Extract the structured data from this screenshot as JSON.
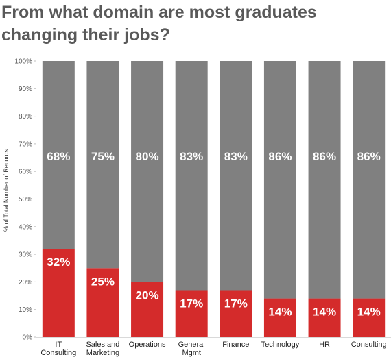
{
  "title": "From what domain are most graduates changing their jobs?",
  "chart_data": {
    "type": "bar",
    "stacked": true,
    "title": "From what domain are most graduates changing their jobs?",
    "xlabel": "",
    "ylabel": "% of Total Number of Records",
    "ylim": [
      0,
      100
    ],
    "yticks": [
      "0%",
      "10%",
      "20%",
      "30%",
      "40%",
      "50%",
      "60%",
      "70%",
      "80%",
      "90%",
      "100%"
    ],
    "grid": false,
    "categories": [
      [
        "IT",
        "Consulting"
      ],
      [
        "Sales and",
        "Marketing"
      ],
      [
        "Operations"
      ],
      [
        "General",
        "Mgmt"
      ],
      [
        "Finance"
      ],
      [
        "Technology"
      ],
      [
        "HR"
      ],
      [
        "Consulting"
      ]
    ],
    "series": [
      {
        "color": "#d42b2b",
        "values": [
          32,
          25,
          20,
          17,
          17,
          14,
          14,
          14
        ],
        "labels": [
          "32%",
          "25%",
          "20%",
          "17%",
          "17%",
          "14%",
          "14%",
          "14%"
        ]
      },
      {
        "color": "#808080",
        "values": [
          68,
          75,
          80,
          83,
          83,
          86,
          86,
          86
        ],
        "labels": [
          "68%",
          "75%",
          "80%",
          "83%",
          "83%",
          "86%",
          "86%",
          "86%"
        ]
      }
    ]
  }
}
